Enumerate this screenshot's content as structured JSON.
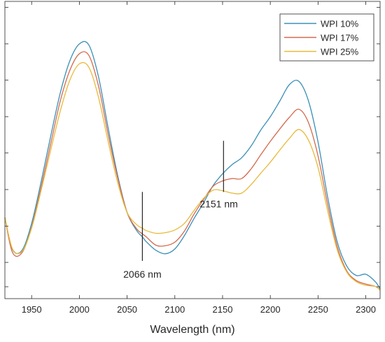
{
  "chart_data": {
    "type": "line",
    "title": "",
    "xlabel": "Wavelength (nm)",
    "ylabel": "",
    "xlim": [
      1922,
      2315
    ],
    "ylim": [
      0,
      1
    ],
    "x_ticks": [
      1950,
      2000,
      2050,
      2100,
      2150,
      2200,
      2250,
      2300
    ],
    "y_ticks": [
      0.04,
      0.122,
      0.244,
      0.367,
      0.49,
      0.612,
      0.735,
      0.857,
      0.98
    ],
    "y_tick_labels_visible": false,
    "grid": false,
    "legend_position": "top-right",
    "x": [
      1922,
      1930,
      1940,
      1950,
      1960,
      1970,
      1980,
      1990,
      2000,
      2010,
      2020,
      2030,
      2040,
      2050,
      2060,
      2066,
      2070,
      2080,
      2090,
      2100,
      2110,
      2120,
      2130,
      2140,
      2150,
      2160,
      2170,
      2180,
      2190,
      2200,
      2210,
      2220,
      2230,
      2240,
      2250,
      2260,
      2270,
      2280,
      2290,
      2300,
      2310,
      2315
    ],
    "series": [
      {
        "name": "WPI 10%",
        "color": "#3a8fb7",
        "values": [
          0.273,
          0.165,
          0.163,
          0.253,
          0.394,
          0.547,
          0.692,
          0.8,
          0.857,
          0.853,
          0.747,
          0.577,
          0.416,
          0.29,
          0.229,
          0.208,
          0.192,
          0.163,
          0.151,
          0.167,
          0.212,
          0.269,
          0.322,
          0.38,
          0.42,
          0.451,
          0.474,
          0.514,
          0.567,
          0.612,
          0.665,
          0.72,
          0.731,
          0.665,
          0.527,
          0.343,
          0.192,
          0.11,
          0.078,
          0.082,
          0.057,
          0.033
        ]
      },
      {
        "name": "WPI 17%",
        "color": "#d46a4d",
        "values": [
          0.273,
          0.155,
          0.155,
          0.241,
          0.376,
          0.521,
          0.665,
          0.768,
          0.824,
          0.818,
          0.716,
          0.555,
          0.408,
          0.29,
          0.235,
          0.218,
          0.208,
          0.18,
          0.178,
          0.19,
          0.227,
          0.284,
          0.333,
          0.378,
          0.396,
          0.404,
          0.404,
          0.437,
          0.484,
          0.529,
          0.571,
          0.61,
          0.637,
          0.592,
          0.48,
          0.318,
          0.176,
          0.094,
          0.061,
          0.049,
          0.041,
          0.029
        ]
      },
      {
        "name": "WPI 25%",
        "color": "#e8b93a",
        "values": [
          0.273,
          0.167,
          0.159,
          0.237,
          0.365,
          0.5,
          0.631,
          0.735,
          0.79,
          0.778,
          0.678,
          0.531,
          0.392,
          0.29,
          0.249,
          0.237,
          0.229,
          0.22,
          0.222,
          0.231,
          0.253,
          0.296,
          0.337,
          0.365,
          0.363,
          0.355,
          0.355,
          0.384,
          0.422,
          0.459,
          0.5,
          0.539,
          0.569,
          0.533,
          0.441,
          0.296,
          0.165,
          0.09,
          0.057,
          0.045,
          0.041,
          0.029
        ]
      }
    ],
    "annotations": [
      {
        "label": "2066 nm",
        "x": 2066,
        "y_from": 0.127,
        "y_to": 0.359,
        "text_position": "below-line"
      },
      {
        "label": "2151 nm",
        "x": 2151,
        "y_from": 0.359,
        "y_to": 0.531,
        "text_position": "right-below-line"
      }
    ]
  }
}
